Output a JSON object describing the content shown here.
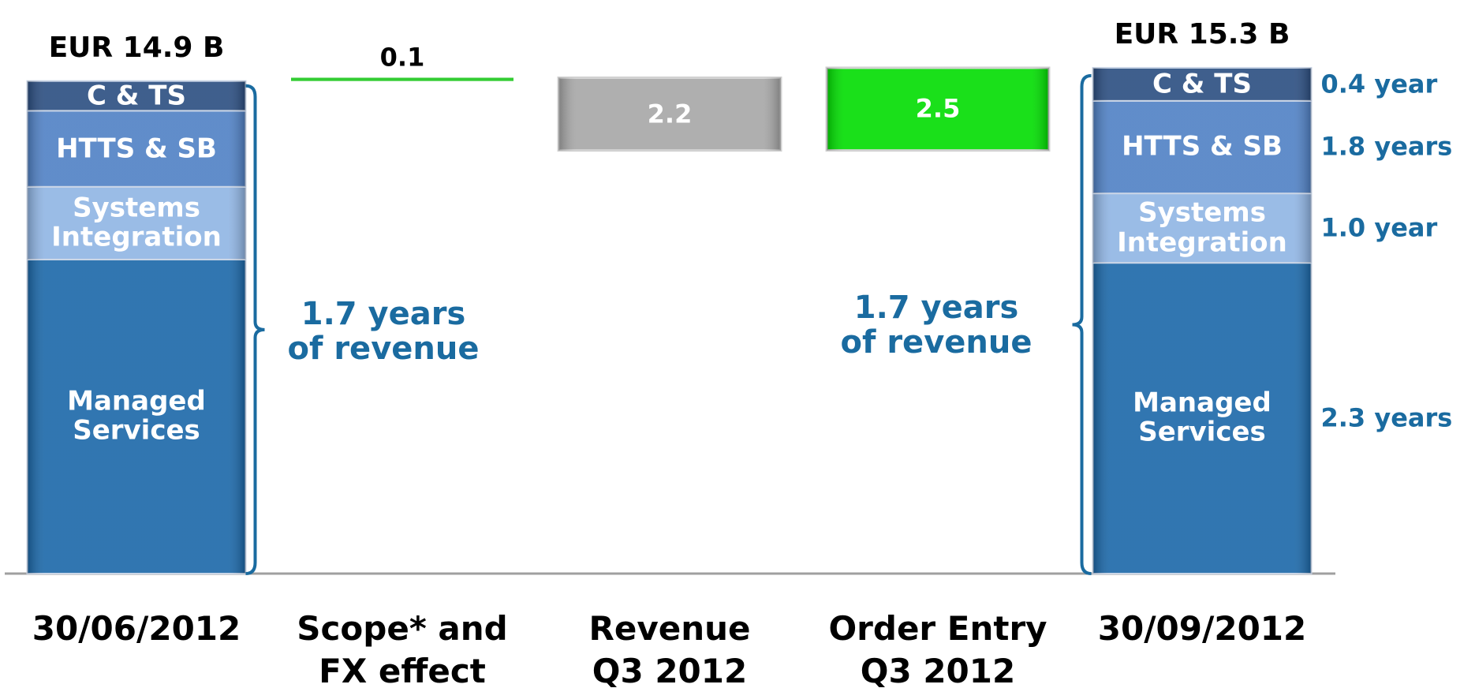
{
  "chart_data": {
    "type": "waterfall",
    "categories": [
      "30/06/2012",
      "Scope* and\nFX effect",
      "Revenue\nQ3 2012",
      "Order Entry\nQ3 2012",
      "30/09/2012"
    ],
    "totals": [
      14.9,
      null,
      null,
      null,
      15.3
    ],
    "total_labels": [
      "EUR 14.9 B",
      null,
      null,
      null,
      "EUR 15.3 B"
    ],
    "series": [
      {
        "name": "Managed Services",
        "color": "#1a67a8",
        "values": [
          9.5,
          null,
          null,
          null,
          9.4
        ],
        "coverage": "2.3 years"
      },
      {
        "name": "Systems Integration",
        "color": "#8fb4e3",
        "values": [
          2.2,
          null,
          null,
          null,
          2.1
        ],
        "coverage": "1.0 year"
      },
      {
        "name": "HTTS & SB",
        "color": "#4f80c4",
        "values": [
          2.3,
          null,
          null,
          null,
          2.8
        ],
        "coverage": "1.8 years"
      },
      {
        "name": "C & TS",
        "color": "#2a4d80",
        "values": [
          0.9,
          null,
          null,
          null,
          1.0
        ],
        "coverage": "0.4 year"
      }
    ],
    "values": [
      null,
      0.1,
      -2.2,
      2.5,
      null
    ],
    "value_labels": [
      null,
      "0.1",
      "2.2",
      "2.5",
      null
    ],
    "change_colors": [
      null,
      "#33cc33",
      "#a6a6a6",
      "#00dd00",
      null
    ],
    "annotations": [
      "1.7 years\nof revenue",
      "1.7 years\nof revenue"
    ]
  }
}
